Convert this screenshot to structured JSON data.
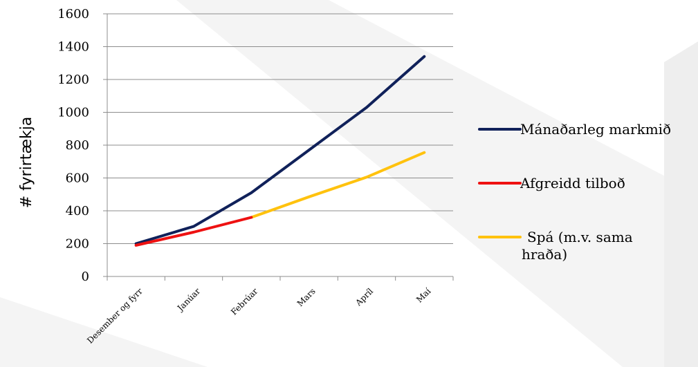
{
  "chart_data": {
    "type": "line",
    "title": "",
    "xlabel": "",
    "ylabel": "# fyrirtækja",
    "categories": [
      "Desember og fyrr",
      "Janúar",
      "Febrúar",
      "Mars",
      "Apríl",
      "Maí"
    ],
    "ylim": [
      0,
      1600
    ],
    "yticks": [
      0,
      200,
      400,
      600,
      800,
      1000,
      1200,
      1400,
      1600
    ],
    "grid": true,
    "legend_position": "right",
    "series": [
      {
        "name": "Mánaðarleg markmið",
        "color": "#10215A",
        "values": [
          200,
          305,
          510,
          770,
          1030,
          1340
        ]
      },
      {
        "name": "Afgreidd tilboð",
        "color": "#EE1111",
        "values": [
          190,
          270,
          360,
          null,
          null,
          null
        ]
      },
      {
        "name": "Spá (m.v. sama hraða)",
        "legend_lines": [
          "Spá (m.v. sama hraða)",
          "hraða)"
        ],
        "color": "#FFC20E",
        "values": [
          null,
          null,
          360,
          485,
          605,
          755
        ]
      }
    ]
  }
}
